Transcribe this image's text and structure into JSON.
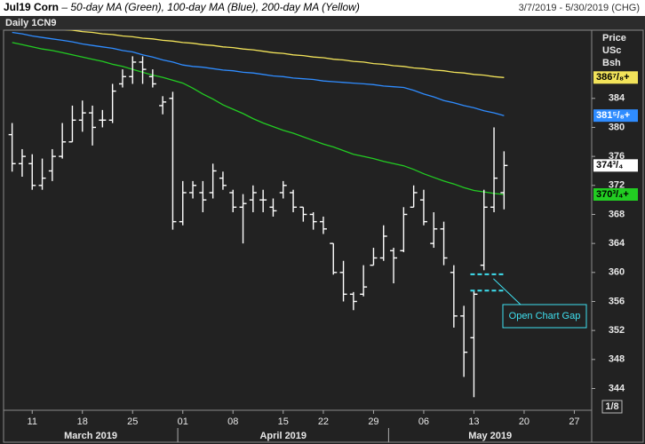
{
  "chart_data": {
    "type": "ohlc",
    "title": "Jul19 Corn",
    "subtitle": "– 50-day MA (Green), 100-day MA (Blue), 200-day MA (Yellow)",
    "date_range": "3/7/2019 - 5/30/2019 (CHG)",
    "label": "Daily 1CN9",
    "unit_lines": [
      "Price",
      "USc",
      "Bsh"
    ],
    "tick_size": "1/8",
    "x": [
      "2019-03-07",
      "2019-03-08",
      "2019-03-11",
      "2019-03-12",
      "2019-03-13",
      "2019-03-14",
      "2019-03-15",
      "2019-03-18",
      "2019-03-19",
      "2019-03-20",
      "2019-03-21",
      "2019-03-22",
      "2019-03-25",
      "2019-03-26",
      "2019-03-27",
      "2019-03-28",
      "2019-03-29",
      "2019-04-01",
      "2019-04-02",
      "2019-04-03",
      "2019-04-04",
      "2019-04-05",
      "2019-04-08",
      "2019-04-09",
      "2019-04-10",
      "2019-04-11",
      "2019-04-12",
      "2019-04-15",
      "2019-04-16",
      "2019-04-17",
      "2019-04-18",
      "2019-04-22",
      "2019-04-23",
      "2019-04-24",
      "2019-04-25",
      "2019-04-26",
      "2019-04-29",
      "2019-04-30",
      "2019-05-01",
      "2019-05-02",
      "2019-05-03",
      "2019-05-06",
      "2019-05-07",
      "2019-05-08",
      "2019-05-09",
      "2019-05-10",
      "2019-05-13",
      "2019-05-14",
      "2019-05-15",
      "2019-05-16"
    ],
    "open": [
      379,
      375,
      375,
      372,
      374,
      376,
      378,
      381,
      382,
      381,
      381,
      386,
      387,
      389,
      387,
      383,
      384,
      367,
      371,
      371,
      371,
      373,
      371,
      369,
      370,
      370,
      369,
      371,
      371,
      369,
      368,
      367,
      364,
      360,
      357,
      357,
      361,
      362,
      363,
      363,
      369,
      370,
      364,
      366,
      360,
      354,
      351,
      361,
      369,
      371
    ],
    "high": [
      380.6,
      377,
      376.3,
      375.7,
      377,
      380.6,
      383,
      383.7,
      383,
      382.4,
      386,
      388,
      389.8,
      389.8,
      388,
      384.3,
      384.9,
      372.6,
      372.6,
      372.6,
      375,
      373.9,
      371.4,
      370.8,
      372,
      371.4,
      370.2,
      372.6,
      371.4,
      369,
      368.3,
      367.7,
      364,
      361.6,
      357.3,
      361,
      363.4,
      366.5,
      363.4,
      369,
      372,
      371.4,
      368.3,
      367,
      361,
      355.4,
      357.4,
      371.4,
      380,
      376.7
    ],
    "low": [
      373.9,
      373.2,
      371.4,
      371.4,
      372.6,
      375.7,
      378,
      379.4,
      377.5,
      380,
      380.6,
      385.5,
      386,
      386,
      385.5,
      381.8,
      365.9,
      366.5,
      370.2,
      368.3,
      370.2,
      371.4,
      368.3,
      364,
      368.3,
      368.3,
      367.7,
      370.2,
      368.3,
      367,
      365.9,
      365.3,
      359.7,
      356,
      354.8,
      356.7,
      361,
      361.6,
      358.5,
      362.8,
      369,
      366.5,
      363.4,
      361,
      352.4,
      345.6,
      342.8,
      360.3,
      368.3,
      368.7
    ],
    "close": [
      375,
      376,
      372,
      373,
      376,
      378,
      381,
      382,
      380,
      381,
      385,
      387,
      389,
      388,
      386,
      383.5,
      367,
      371,
      372,
      370,
      374,
      372,
      369,
      369.5,
      371,
      370,
      368.5,
      372,
      369,
      368,
      367,
      366,
      360,
      357,
      356,
      358,
      362,
      365,
      362,
      368,
      371,
      367,
      366,
      362,
      354,
      349,
      357,
      369,
      373,
      374.75
    ],
    "close_last_label": "374³/₄",
    "series": [
      {
        "color": "#f2e35a",
        "last_label": "386⁷/₈+",
        "values": [
          394.3,
          394.1,
          394.0,
          393.8,
          393.7,
          393.5,
          393.4,
          393.2,
          393.1,
          392.9,
          392.8,
          392.6,
          392.5,
          392.3,
          392.2,
          392.0,
          391.9,
          391.7,
          391.6,
          391.4,
          391.3,
          391.1,
          391.0,
          390.8,
          390.7,
          390.5,
          390.3,
          390.2,
          390.0,
          389.9,
          389.7,
          389.6,
          389.4,
          389.3,
          389.1,
          389.0,
          388.8,
          388.7,
          388.5,
          388.4,
          388.2,
          388.1,
          387.9,
          387.8,
          387.6,
          387.5,
          387.3,
          387.2,
          387.0,
          386.875
        ]
      },
      {
        "color": "#2f8cff",
        "last_label": "381⁵/₈+",
        "values": [
          393.1,
          392.9,
          392.6,
          392.4,
          392.2,
          392.0,
          391.8,
          391.5,
          391.3,
          391.1,
          390.9,
          390.6,
          390.4,
          390.0,
          389.7,
          389.3,
          389.0,
          388.6,
          388.4,
          388.3,
          388.1,
          387.9,
          387.8,
          387.6,
          387.5,
          387.3,
          387.1,
          387.0,
          386.8,
          386.7,
          386.6,
          386.4,
          386.3,
          386.2,
          386.1,
          386.0,
          385.9,
          385.7,
          385.6,
          385.5,
          385.1,
          384.6,
          384.2,
          383.7,
          383.4,
          383.0,
          382.7,
          382.3,
          382.0,
          381.625
        ]
      },
      {
        "color": "#22cc22",
        "last_label": "370³/₄+",
        "values": [
          391.7,
          391.4,
          391.1,
          390.8,
          390.6,
          390.3,
          390.0,
          389.7,
          389.4,
          389.1,
          388.7,
          388.4,
          388.0,
          387.6,
          387.2,
          386.9,
          386.5,
          386.1,
          385.4,
          384.6,
          383.9,
          383.1,
          382.5,
          381.9,
          381.2,
          380.6,
          380.1,
          379.6,
          379.2,
          378.7,
          378.2,
          377.7,
          377.3,
          376.8,
          376.3,
          376.0,
          375.7,
          375.3,
          375.0,
          374.7,
          374.2,
          373.6,
          373.1,
          372.6,
          372.2,
          371.7,
          371.3,
          371.1,
          370.9,
          370.75
        ]
      }
    ],
    "gap": {
      "label": "Open Chart Gap",
      "low": 357.5,
      "high": 359.75,
      "from": "2019-05-13",
      "to": "2019-05-16"
    },
    "ylim": [
      341,
      393.4
    ],
    "yticks": [
      344,
      348,
      352,
      356,
      360,
      364,
      368,
      372,
      376,
      380,
      384
    ],
    "xticks": [
      {
        "value": "2019-03-11",
        "label": "11"
      },
      {
        "value": "2019-03-18",
        "label": "18"
      },
      {
        "value": "2019-03-25",
        "label": "25"
      },
      {
        "value": "2019-04-01",
        "label": "01"
      },
      {
        "value": "2019-04-08",
        "label": "08"
      },
      {
        "value": "2019-04-15",
        "label": "15"
      },
      {
        "value": "2019-04-22",
        "label": "22"
      },
      {
        "value": "2019-04-29",
        "label": "29"
      },
      {
        "value": "2019-05-06",
        "label": "06"
      },
      {
        "value": "2019-05-13",
        "label": "13"
      },
      {
        "value": "2019-05-20",
        "label": "20"
      },
      {
        "value": "2019-05-27",
        "label": "27"
      }
    ],
    "months": [
      {
        "value": "2019-03",
        "label": "March 2019"
      },
      {
        "value": "2019-04",
        "label": "April 2019"
      },
      {
        "value": "2019-05",
        "label": "May 2019"
      }
    ]
  }
}
